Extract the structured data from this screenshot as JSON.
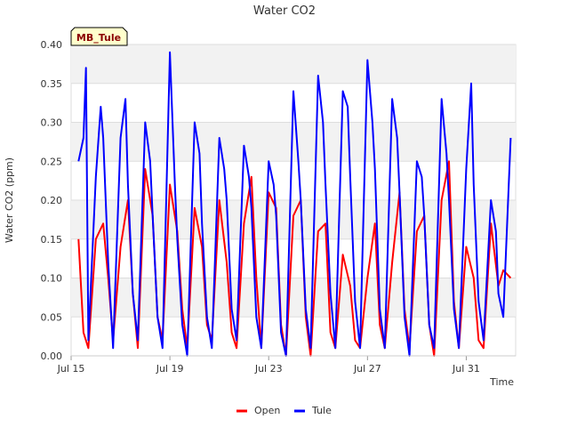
{
  "chart_data": {
    "type": "line",
    "title": "Water CO2",
    "xlabel": "Time",
    "ylabel": "Water CO2 (ppm)",
    "site_badge": "MB_Tule",
    "x_range_days": [
      15,
      33
    ],
    "ylim": [
      0,
      0.4
    ],
    "y_ticks": [
      0.0,
      0.05,
      0.1,
      0.15,
      0.2,
      0.25,
      0.3,
      0.35,
      0.4
    ],
    "y_tick_labels": [
      "0.00",
      "0.05",
      "0.10",
      "0.15",
      "0.20",
      "0.25",
      "0.30",
      "0.35",
      "0.40"
    ],
    "x_ticks": [
      15,
      19,
      23,
      27,
      31
    ],
    "x_tick_labels": [
      "Jul 15",
      "Jul 19",
      "Jul 23",
      "Jul 27",
      "Jul 31"
    ],
    "grid": true,
    "legend_position": "bottom-center",
    "series": [
      {
        "name": "Open",
        "color": "#ff0000",
        "x": [
          15.3,
          15.5,
          15.7,
          16.0,
          16.3,
          16.5,
          16.7,
          17.0,
          17.3,
          17.5,
          17.7,
          18.0,
          18.3,
          18.5,
          18.7,
          19.0,
          19.3,
          19.5,
          19.7,
          20.0,
          20.3,
          20.5,
          20.7,
          21.0,
          21.3,
          21.5,
          21.7,
          22.0,
          22.3,
          22.5,
          22.7,
          23.0,
          23.3,
          23.5,
          23.7,
          24.0,
          24.3,
          24.5,
          24.7,
          25.0,
          25.3,
          25.5,
          25.7,
          26.0,
          26.3,
          26.5,
          26.7,
          27.0,
          27.3,
          27.5,
          27.7,
          28.0,
          28.3,
          28.5,
          28.7,
          29.0,
          29.3,
          29.5,
          29.7,
          30.0,
          30.3,
          30.5,
          30.7,
          31.0,
          31.3,
          31.5,
          31.7,
          32.0,
          32.3,
          32.5,
          32.8
        ],
        "y": [
          0.15,
          0.03,
          0.01,
          0.15,
          0.17,
          0.1,
          0.02,
          0.14,
          0.2,
          0.08,
          0.01,
          0.24,
          0.18,
          0.05,
          0.02,
          0.22,
          0.16,
          0.06,
          0.01,
          0.19,
          0.14,
          0.04,
          0.02,
          0.2,
          0.12,
          0.03,
          0.01,
          0.17,
          0.23,
          0.1,
          0.01,
          0.21,
          0.19,
          0.04,
          0.0,
          0.18,
          0.2,
          0.05,
          0.0,
          0.16,
          0.17,
          0.03,
          0.01,
          0.13,
          0.09,
          0.02,
          0.01,
          0.1,
          0.17,
          0.04,
          0.01,
          0.12,
          0.21,
          0.06,
          0.01,
          0.16,
          0.18,
          0.04,
          0.0,
          0.2,
          0.25,
          0.07,
          0.01,
          0.14,
          0.1,
          0.02,
          0.01,
          0.17,
          0.09,
          0.11,
          0.1
        ]
      },
      {
        "name": "Tule",
        "color": "#0000ff",
        "x": [
          15.3,
          15.5,
          15.6,
          15.7,
          16.0,
          16.2,
          16.3,
          16.5,
          16.7,
          17.0,
          17.2,
          17.3,
          17.5,
          17.7,
          18.0,
          18.2,
          18.3,
          18.5,
          18.7,
          19.0,
          19.2,
          19.3,
          19.5,
          19.7,
          20.0,
          20.2,
          20.3,
          20.5,
          20.7,
          21.0,
          21.2,
          21.3,
          21.5,
          21.7,
          22.0,
          22.2,
          22.3,
          22.5,
          22.7,
          23.0,
          23.2,
          23.3,
          23.5,
          23.7,
          24.0,
          24.2,
          24.3,
          24.5,
          24.7,
          25.0,
          25.2,
          25.3,
          25.5,
          25.7,
          26.0,
          26.2,
          26.3,
          26.5,
          26.7,
          27.0,
          27.2,
          27.3,
          27.5,
          27.7,
          28.0,
          28.2,
          28.3,
          28.5,
          28.7,
          29.0,
          29.2,
          29.3,
          29.5,
          29.7,
          30.0,
          30.2,
          30.3,
          30.5,
          30.7,
          31.0,
          31.2,
          31.3,
          31.5,
          31.7,
          32.0,
          32.2,
          32.3,
          32.5,
          32.8
        ],
        "y": [
          0.25,
          0.28,
          0.37,
          0.02,
          0.23,
          0.32,
          0.28,
          0.12,
          0.01,
          0.28,
          0.33,
          0.22,
          0.08,
          0.02,
          0.3,
          0.25,
          0.18,
          0.05,
          0.01,
          0.39,
          0.22,
          0.15,
          0.04,
          0.0,
          0.3,
          0.26,
          0.17,
          0.05,
          0.01,
          0.28,
          0.24,
          0.2,
          0.06,
          0.02,
          0.27,
          0.23,
          0.19,
          0.05,
          0.01,
          0.25,
          0.22,
          0.18,
          0.03,
          0.0,
          0.34,
          0.25,
          0.2,
          0.06,
          0.01,
          0.36,
          0.3,
          0.22,
          0.08,
          0.01,
          0.34,
          0.32,
          0.23,
          0.07,
          0.01,
          0.38,
          0.3,
          0.24,
          0.06,
          0.01,
          0.33,
          0.28,
          0.21,
          0.05,
          0.0,
          0.25,
          0.23,
          0.18,
          0.04,
          0.01,
          0.33,
          0.26,
          0.2,
          0.06,
          0.01,
          0.24,
          0.35,
          0.22,
          0.07,
          0.02,
          0.2,
          0.16,
          0.08,
          0.05,
          0.28
        ]
      }
    ]
  }
}
